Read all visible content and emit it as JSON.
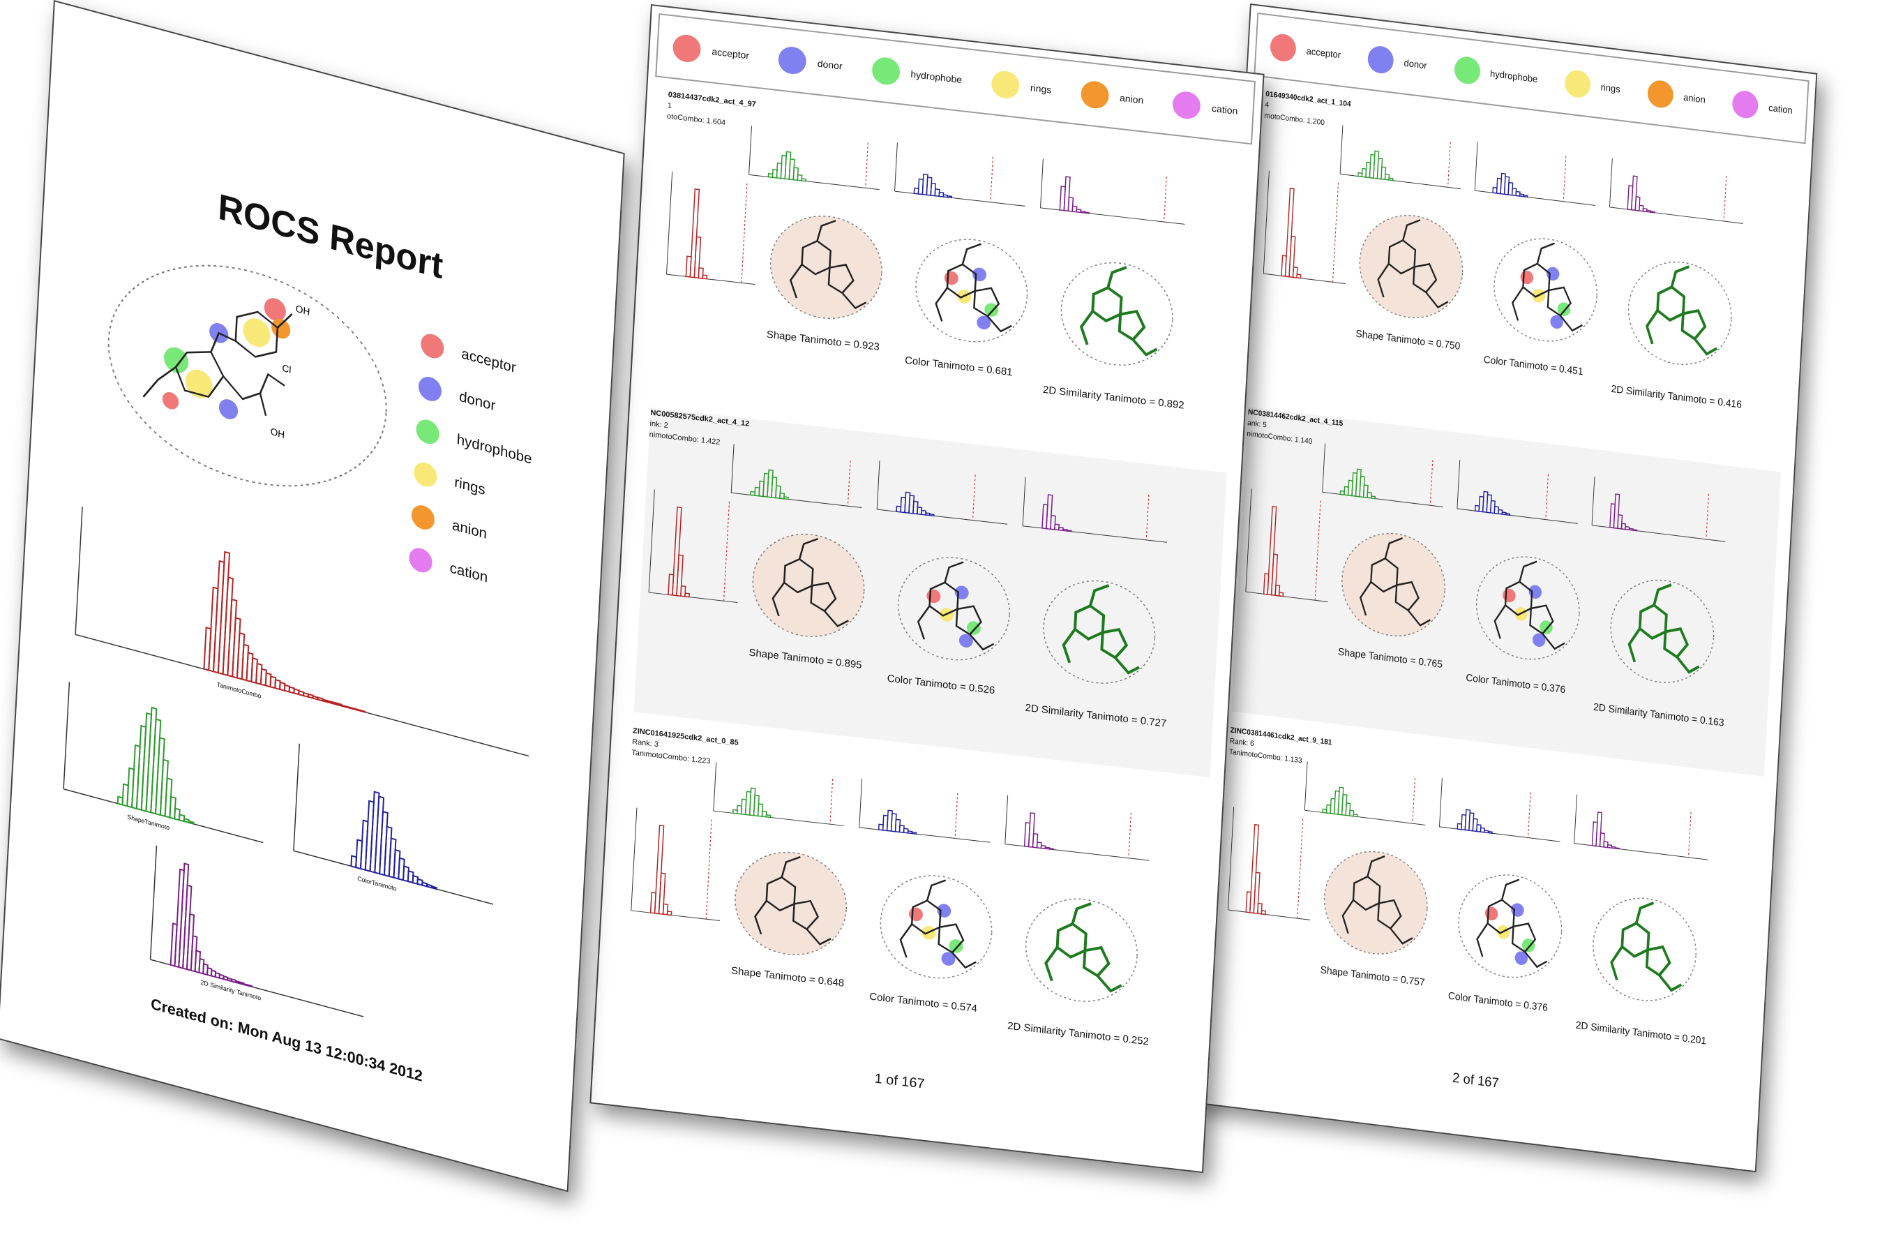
{
  "colors": {
    "acceptor": "#f07878",
    "donor": "#8080f0",
    "hydrophobe": "#78e878",
    "rings": "#f8e878",
    "anion": "#f4962e",
    "cation": "#e47cf0",
    "tanimoto_combo": "#b52222",
    "shape": "#2c9a2c",
    "color_hist": "#2020a0",
    "similarity_2d": "#7a1f8a",
    "molecule_2d": "#1e7a1e"
  },
  "legend": [
    {
      "key": "acceptor",
      "label": "acceptor"
    },
    {
      "key": "donor",
      "label": "donor"
    },
    {
      "key": "hydrophobe",
      "label": "hydrophobe"
    },
    {
      "key": "rings",
      "label": "rings"
    },
    {
      "key": "anion",
      "label": "anion"
    },
    {
      "key": "cation",
      "label": "cation"
    }
  ],
  "cover": {
    "title": "ROCS Report",
    "created": "Created on: Mon Aug 13 12:00:34 2012",
    "molecule_atoms": {
      "oh_top": "OH",
      "cl": "Cl",
      "oh_bottom": "OH",
      "o": "O"
    },
    "histogram_labels": {
      "combo": "TanimotoCombo",
      "shape": "ShapeTanimoto",
      "color": "ColorTanimoto",
      "sim": "2D Similarity Tanimoto"
    }
  },
  "pages": [
    {
      "page_label": "1 of 167",
      "results": [
        {
          "id": "03814437cdk2_act_4_97",
          "rank": "1",
          "combo": "otoCombo: 1.604",
          "shape": "Shape Tanimoto = 0.923",
          "color": "Color Tanimoto = 0.681",
          "sim2d": "2D Similarity Tanimoto = 0.892"
        },
        {
          "id": "NC00582575cdk2_act_4_12",
          "rank": "ink: 2",
          "combo": "nimotoCombo: 1.422",
          "shape": "Shape Tanimoto = 0.895",
          "color": "Color Tanimoto = 0.526",
          "sim2d": "2D Similarity Tanimoto = 0.727"
        },
        {
          "id": "ZINC01641925cdk2_act_0_85",
          "rank": "Rank: 3",
          "combo": "TanimotoCombo: 1.223",
          "shape": "Shape Tanimoto = 0.648",
          "color": "Color Tanimoto = 0.574",
          "sim2d": "2D Similarity Tanimoto = 0.252"
        }
      ]
    },
    {
      "page_label": "2 of 167",
      "results": [
        {
          "id": "01649340cdk2_act_1_104",
          "rank": "4",
          "combo": "motoCombo: 1.200",
          "shape": "Shape Tanimoto = 0.750",
          "color": "Color Tanimoto = 0.451",
          "sim2d": "2D Similarity Tanimoto = 0.416"
        },
        {
          "id": "NC03814462cdk2_act_4_115",
          "rank": "ank: 5",
          "combo": "nimotoCombo: 1.140",
          "shape": "Shape Tanimoto = 0.765",
          "color": "Color Tanimoto = 0.376",
          "sim2d": "2D Similarity Tanimoto = 0.163"
        },
        {
          "id": "ZINC03814461cdk2_act_9_181",
          "rank": "Rank: 6",
          "combo": "TanimotoCombo: 1.133",
          "shape": "Shape Tanimoto = 0.757",
          "color": "Color Tanimoto = 0.376",
          "sim2d": "2D Similarity Tanimoto = 0.201"
        }
      ]
    }
  ]
}
